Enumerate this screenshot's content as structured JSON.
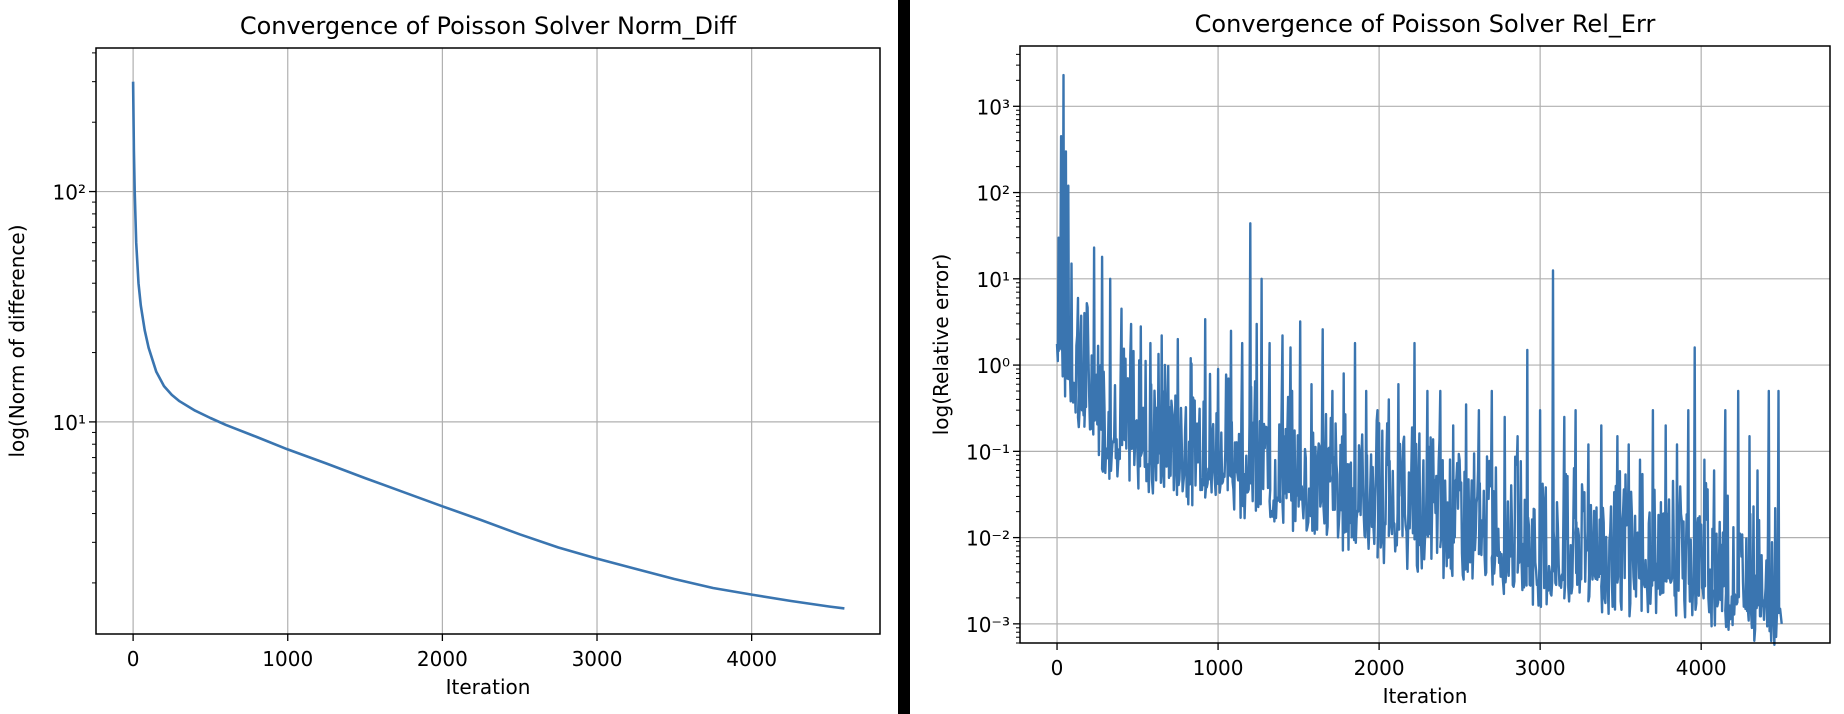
{
  "chart_data": [
    {
      "type": "line",
      "title": "Convergence of Poisson Solver Norm_Diff",
      "xlabel": "Iteration",
      "ylabel": "log(Norm of difference)",
      "yscale": "log",
      "xlim": [
        -240,
        4830
      ],
      "ylim": [
        1.2,
        420
      ],
      "x_ticks": [
        0,
        1000,
        2000,
        3000,
        4000
      ],
      "x_tick_labels": [
        "0",
        "1000",
        "2000",
        "3000",
        "4000"
      ],
      "y_ticks": [
        10,
        100
      ],
      "y_tick_labels": [
        "10¹",
        "10²"
      ],
      "grid": true,
      "color": "#3a75b0",
      "series": [
        {
          "x": [
            0,
            5,
            10,
            20,
            35,
            50,
            75,
            100,
            150,
            200,
            250,
            300,
            400,
            500,
            600,
            800,
            1000,
            1250,
            1500,
            1750,
            2000,
            2250,
            2500,
            2750,
            3000,
            3250,
            3500,
            3750,
            4000,
            4250,
            4500,
            4600
          ],
          "y": [
            300,
            150,
            100,
            60,
            40,
            32,
            25,
            21,
            16.5,
            14.3,
            13.1,
            12.3,
            11.2,
            10.4,
            9.7,
            8.6,
            7.6,
            6.6,
            5.7,
            4.95,
            4.3,
            3.75,
            3.25,
            2.85,
            2.55,
            2.3,
            2.08,
            1.9,
            1.78,
            1.67,
            1.58,
            1.55
          ]
        }
      ]
    },
    {
      "type": "line",
      "title": "Convergence of Poisson Solver Rel_Err",
      "xlabel": "Iteration",
      "ylabel": "log(Relative error)",
      "yscale": "log",
      "xlim": [
        -230,
        4800
      ],
      "ylim": [
        0.0006,
        5000
      ],
      "x_ticks": [
        0,
        1000,
        2000,
        3000,
        4000
      ],
      "x_tick_labels": [
        "0",
        "1000",
        "2000",
        "3000",
        "4000"
      ],
      "y_ticks": [
        0.001,
        0.01,
        0.1,
        1,
        10,
        100,
        1000
      ],
      "y_tick_labels": [
        "10⁻³",
        "10⁻²",
        "10⁻¹",
        "10⁰",
        "10¹",
        "10²",
        "10³"
      ],
      "grid": true,
      "color": "#3a75b0",
      "series": [
        {
          "baseline": [
            [
              0,
              3
            ],
            [
              100,
              0.8
            ],
            [
              300,
              0.2
            ],
            [
              600,
              0.12
            ],
            [
              1000,
              0.08
            ],
            [
              1500,
              0.04
            ],
            [
              2000,
              0.02
            ],
            [
              2500,
              0.012
            ],
            [
              3000,
              0.006
            ],
            [
              3500,
              0.005
            ],
            [
              4000,
              0.004
            ],
            [
              4500,
              0.002
            ]
          ],
          "spikes": [
            [
              10,
              30
            ],
            [
              25,
              450
            ],
            [
              40,
              2300
            ],
            [
              55,
              300
            ],
            [
              70,
              120
            ],
            [
              90,
              15
            ],
            [
              130,
              6
            ],
            [
              170,
              4
            ],
            [
              230,
              23
            ],
            [
              280,
              18
            ],
            [
              330,
              10
            ],
            [
              400,
              4.5
            ],
            [
              460,
              3
            ],
            [
              520,
              2.8
            ],
            [
              580,
              1.8
            ],
            [
              650,
              2.2
            ],
            [
              750,
              2
            ],
            [
              830,
              1.2
            ],
            [
              920,
              3.4
            ],
            [
              1000,
              0.9
            ],
            [
              1080,
              2.5
            ],
            [
              1150,
              1.8
            ],
            [
              1200,
              44
            ],
            [
              1240,
              3
            ],
            [
              1270,
              10
            ],
            [
              1320,
              1.8
            ],
            [
              1400,
              2.2
            ],
            [
              1450,
              1.6
            ],
            [
              1510,
              3.2
            ],
            [
              1580,
              0.6
            ],
            [
              1650,
              2.6
            ],
            [
              1710,
              0.5
            ],
            [
              1780,
              0.8
            ],
            [
              1850,
              1.8
            ],
            [
              1920,
              0.5
            ],
            [
              1990,
              0.3
            ],
            [
              2060,
              0.4
            ],
            [
              2120,
              0.6
            ],
            [
              2220,
              1.8
            ],
            [
              2300,
              0.5
            ],
            [
              2380,
              0.5
            ],
            [
              2460,
              0.2
            ],
            [
              2540,
              0.35
            ],
            [
              2620,
              0.3
            ],
            [
              2700,
              0.5
            ],
            [
              2780,
              0.25
            ],
            [
              2860,
              0.15
            ],
            [
              2920,
              1.5
            ],
            [
              3000,
              0.3
            ],
            [
              3080,
              12.5
            ],
            [
              3150,
              0.25
            ],
            [
              3220,
              0.3
            ],
            [
              3300,
              0.12
            ],
            [
              3380,
              0.2
            ],
            [
              3480,
              0.15
            ],
            [
              3550,
              0.12
            ],
            [
              3620,
              0.08
            ],
            [
              3700,
              0.3
            ],
            [
              3780,
              0.2
            ],
            [
              3850,
              0.12
            ],
            [
              3920,
              0.3
            ],
            [
              3960,
              1.6
            ],
            [
              4020,
              0.08
            ],
            [
              4080,
              0.06
            ],
            [
              4150,
              0.3
            ],
            [
              4230,
              0.5
            ],
            [
              4300,
              0.15
            ],
            [
              4350,
              0.06
            ],
            [
              4420,
              0.5
            ],
            [
              4480,
              0.5
            ]
          ],
          "end": [
            4500,
            0.001
          ]
        }
      ]
    }
  ]
}
